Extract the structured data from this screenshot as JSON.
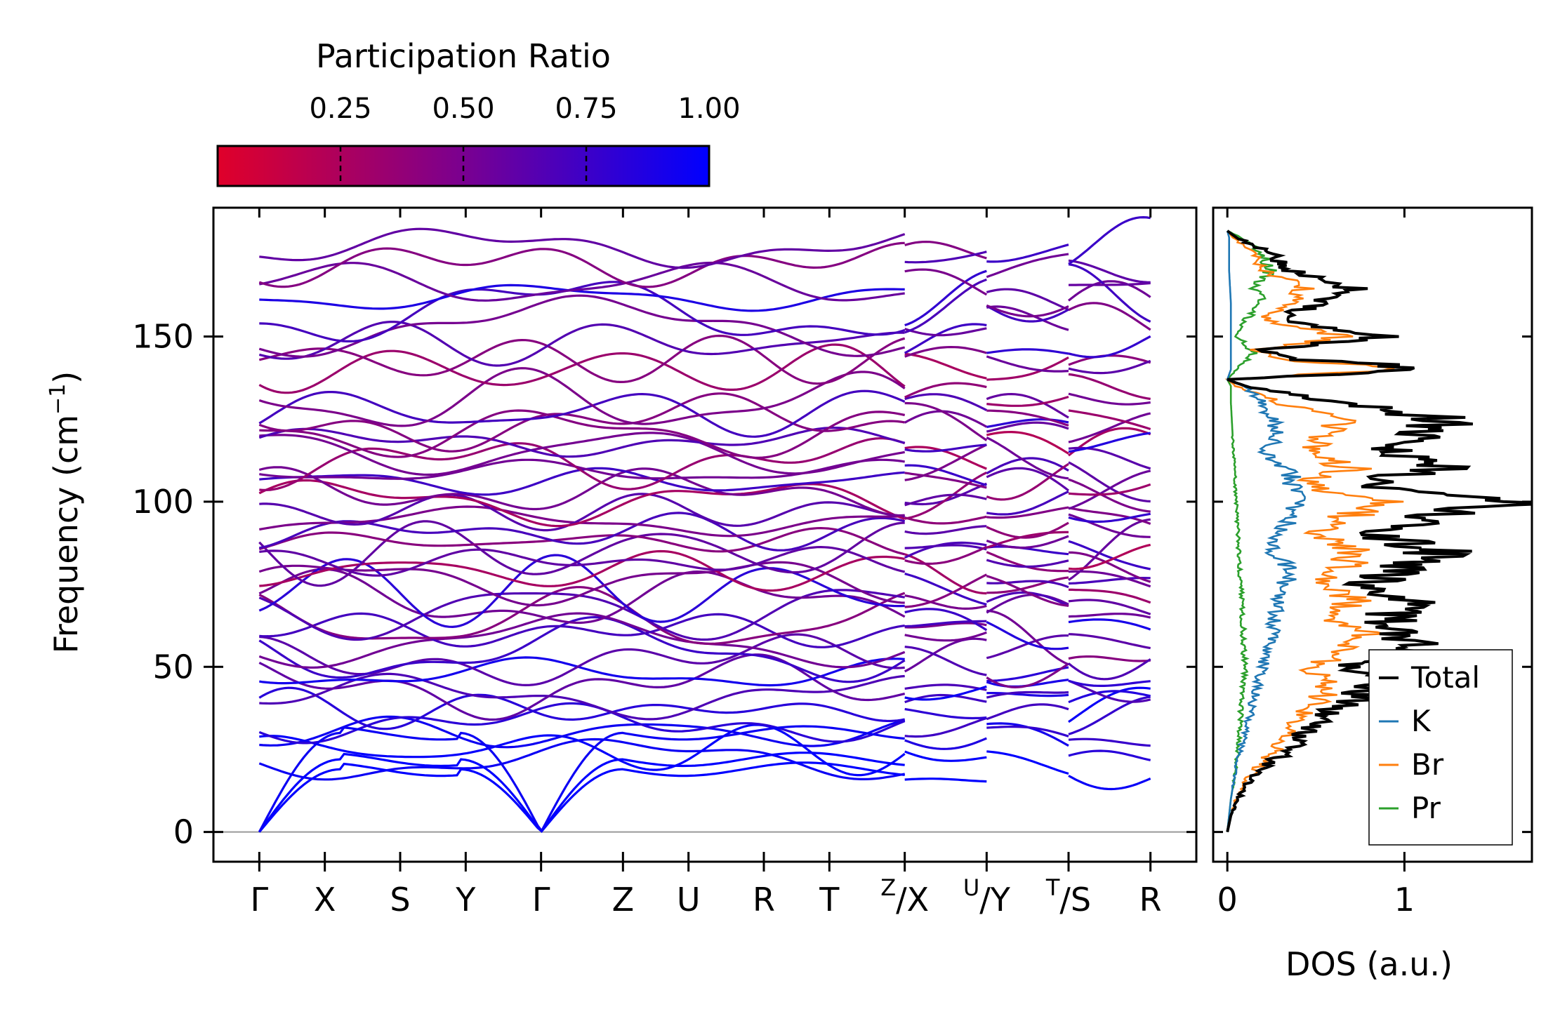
{
  "chart_data": [
    {
      "type": "line",
      "subtype": "phonon-band-structure",
      "colorbar": {
        "title": "Participation Ratio",
        "range": [
          0.0,
          1.0
        ],
        "tick_values": [
          0.25,
          0.5,
          0.75,
          1.0
        ],
        "tick_labels": [
          "0.25",
          "0.50",
          "0.75",
          "1.00"
        ],
        "color_low": "#e0002a",
        "color_high": "#0000ff"
      },
      "ylabel": "Frequency (cm",
      "ylabel_sup": "−1",
      "ylabel_close": ")",
      "ylim": [
        -9,
        189
      ],
      "y_ticks": [
        0,
        50,
        100,
        150
      ],
      "y_tick_labels": [
        "0",
        "50",
        "100",
        "150"
      ],
      "x_ticks": [
        {
          "label": "Γ",
          "pos": 0.0
        },
        {
          "label": "X",
          "pos": 1.0
        },
        {
          "label": "S",
          "pos": 2.15
        },
        {
          "label": "Y",
          "pos": 3.15
        },
        {
          "label": "Γ",
          "pos": 4.3
        },
        {
          "label": "Z",
          "pos": 5.55
        },
        {
          "label": "U",
          "pos": 6.55
        },
        {
          "label": "R",
          "pos": 7.7
        },
        {
          "label": "T",
          "pos": 8.7
        },
        {
          "label_sup": "Z",
          "label_main": "/X",
          "pos": 9.85
        },
        {
          "label_sup": "U",
          "label_main": "/Y",
          "pos": 11.1
        },
        {
          "label_sup": "T",
          "label_main": "/S",
          "pos": 12.35
        },
        {
          "label": "R",
          "pos": 13.6
        }
      ],
      "xlim": [
        -0.7,
        14.3
      ],
      "segments": [
        [
          0.0,
          9.85
        ],
        [
          9.85,
          11.1
        ],
        [
          11.1,
          12.35
        ],
        [
          12.35,
          13.6
        ]
      ],
      "acoustic_branches": [
        {
          "gamma_start": 0.0,
          "zone_edge_freq": 19,
          "pr": 1.0
        },
        {
          "gamma_start": 0.0,
          "zone_edge_freq": 22,
          "pr": 1.0
        },
        {
          "gamma_start": 0.0,
          "zone_edge_freq": 30,
          "pr": 0.95
        }
      ],
      "representative_branches_cm1": [
        22,
        25,
        30,
        33,
        37,
        41,
        44,
        48,
        52,
        55,
        58,
        61,
        64,
        67,
        70,
        73,
        76,
        79,
        82,
        85,
        88,
        91,
        94,
        97,
        100,
        103,
        106,
        109,
        112,
        115,
        118,
        121,
        124,
        127,
        130,
        140,
        143,
        148,
        153,
        158,
        162,
        166,
        172,
        177
      ],
      "representative_branches_pr": [
        0.95,
        0.9,
        0.85,
        0.8,
        0.9,
        0.75,
        0.6,
        0.85,
        0.5,
        0.7,
        0.55,
        0.8,
        0.45,
        0.6,
        0.4,
        0.75,
        0.5,
        0.35,
        0.65,
        0.55,
        0.3,
        0.6,
        0.45,
        0.7,
        0.35,
        0.5,
        0.65,
        0.4,
        0.3,
        0.55,
        0.75,
        0.45,
        0.35,
        0.6,
        0.4,
        0.35,
        0.5,
        0.7,
        0.45,
        0.6,
        0.8,
        0.55,
        0.5,
        0.65
      ]
    },
    {
      "type": "line",
      "subtype": "density-of-states",
      "xlabel": "DOS (a.u.)",
      "xlim": [
        -0.08,
        1.72
      ],
      "x_ticks": [
        0,
        1
      ],
      "x_tick_labels": [
        "0",
        "1"
      ],
      "ylim": [
        -9,
        189
      ],
      "series": [
        {
          "name": "Total",
          "color": "#000000",
          "freq": [
            0,
            5,
            10,
            15,
            20,
            25,
            30,
            35,
            40,
            45,
            50,
            55,
            60,
            65,
            70,
            75,
            80,
            85,
            90,
            95,
            100,
            103,
            106,
            110,
            115,
            120,
            125,
            130,
            133,
            135,
            137,
            140,
            141,
            143,
            146,
            150,
            155,
            160,
            165,
            170,
            175,
            180,
            182
          ],
          "dos": [
            0,
            0.02,
            0.06,
            0.12,
            0.22,
            0.35,
            0.45,
            0.55,
            0.7,
            0.85,
            0.65,
            1.05,
            1.0,
            0.9,
            1.05,
            0.8,
            1.0,
            1.2,
            0.85,
            1.1,
            1.65,
            1.0,
            0.8,
            1.25,
            0.9,
            1.05,
            1.25,
            0.6,
            0.3,
            0.1,
            0,
            1.1,
            1.0,
            0.4,
            0.2,
            0.9,
            0.3,
            0.5,
            0.7,
            0.35,
            0.25,
            0.05,
            0
          ]
        },
        {
          "name": "K",
          "color": "#1f77b4",
          "freq": [
            0,
            10,
            20,
            30,
            40,
            50,
            60,
            70,
            80,
            85,
            90,
            100,
            110,
            115,
            120,
            125,
            130,
            135,
            137,
            140,
            150,
            160,
            170,
            180,
            182
          ],
          "dos": [
            0,
            0.02,
            0.05,
            0.1,
            0.15,
            0.2,
            0.25,
            0.3,
            0.35,
            0.25,
            0.3,
            0.4,
            0.35,
            0.2,
            0.3,
            0.25,
            0.2,
            0.1,
            0,
            0.02,
            0.02,
            0.02,
            0.01,
            0.01,
            0
          ]
        },
        {
          "name": "Br",
          "color": "#ff7f0e",
          "freq": [
            0,
            5,
            10,
            15,
            20,
            25,
            30,
            35,
            40,
            45,
            50,
            55,
            60,
            65,
            70,
            75,
            80,
            85,
            90,
            95,
            100,
            103,
            106,
            110,
            115,
            120,
            125,
            130,
            133,
            135,
            137,
            140,
            141,
            143,
            146,
            150,
            155,
            160,
            165,
            170,
            175,
            180,
            182
          ],
          "dos": [
            0,
            0.02,
            0.05,
            0.1,
            0.18,
            0.28,
            0.35,
            0.42,
            0.5,
            0.6,
            0.45,
            0.7,
            0.75,
            0.6,
            0.7,
            0.55,
            0.65,
            0.75,
            0.5,
            0.65,
            0.95,
            0.6,
            0.45,
            0.7,
            0.45,
            0.55,
            0.65,
            0.3,
            0.15,
            0.05,
            0,
            0.95,
            0.85,
            0.3,
            0.15,
            0.7,
            0.2,
            0.35,
            0.45,
            0.2,
            0.15,
            0.03,
            0
          ]
        },
        {
          "name": "Pr",
          "color": "#2ca02c",
          "freq": [
            0,
            10,
            20,
            30,
            40,
            50,
            60,
            70,
            80,
            90,
            100,
            110,
            120,
            130,
            135,
            137,
            140,
            145,
            148,
            150,
            155,
            160,
            165,
            170,
            175,
            180,
            182
          ],
          "dos": [
            0,
            0.02,
            0.05,
            0.07,
            0.08,
            0.1,
            0.09,
            0.08,
            0.07,
            0.06,
            0.05,
            0.04,
            0.03,
            0.02,
            0.02,
            0,
            0.05,
            0.15,
            0.1,
            0.05,
            0.1,
            0.2,
            0.15,
            0.25,
            0.2,
            0.08,
            0
          ]
        }
      ],
      "legend": {
        "placement": "lower-right",
        "entries": [
          "Total",
          "K",
          "Br",
          "Pr"
        ]
      }
    }
  ]
}
